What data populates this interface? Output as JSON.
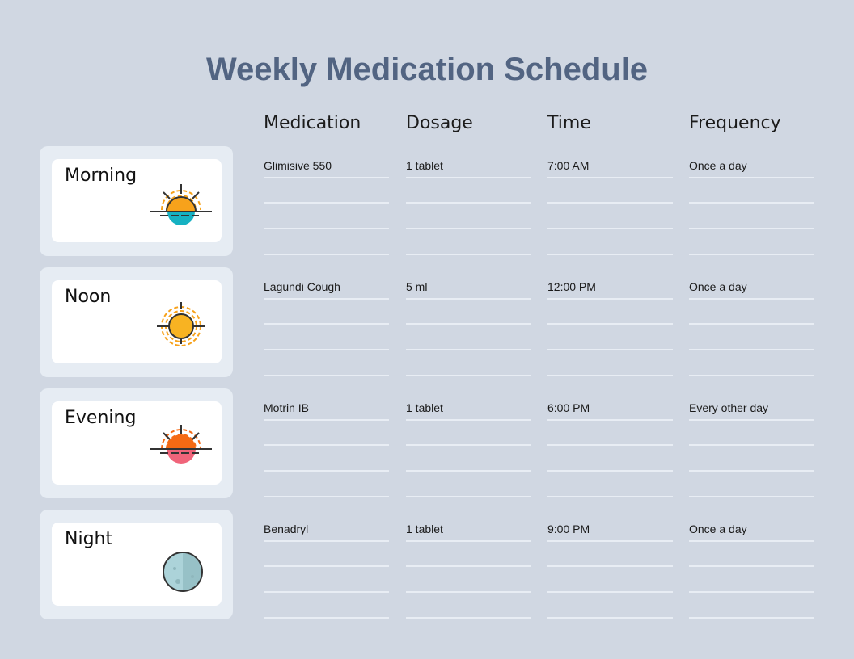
{
  "title": "Weekly Medication Schedule",
  "headers": [
    "Medication",
    "Dosage",
    "Time",
    "Frequency"
  ],
  "rows": [
    {
      "period": "Morning",
      "icon": "sunrise-icon",
      "cells": [
        "Glimisive 550",
        "1 tablet",
        "7:00 AM",
        "Once a day"
      ]
    },
    {
      "period": "Noon",
      "icon": "sun-icon",
      "cells": [
        "Lagundi Cough",
        "5 ml",
        "12:00 PM",
        "Once a day"
      ]
    },
    {
      "period": "Evening",
      "icon": "sunset-icon",
      "cells": [
        "Motrin IB",
        "1 tablet",
        "6:00 PM",
        "Every other day"
      ]
    },
    {
      "period": "Night",
      "icon": "moon-icon",
      "cells": [
        "Benadryl",
        "1 tablet",
        "9:00 PM",
        "Once a day"
      ]
    }
  ]
}
